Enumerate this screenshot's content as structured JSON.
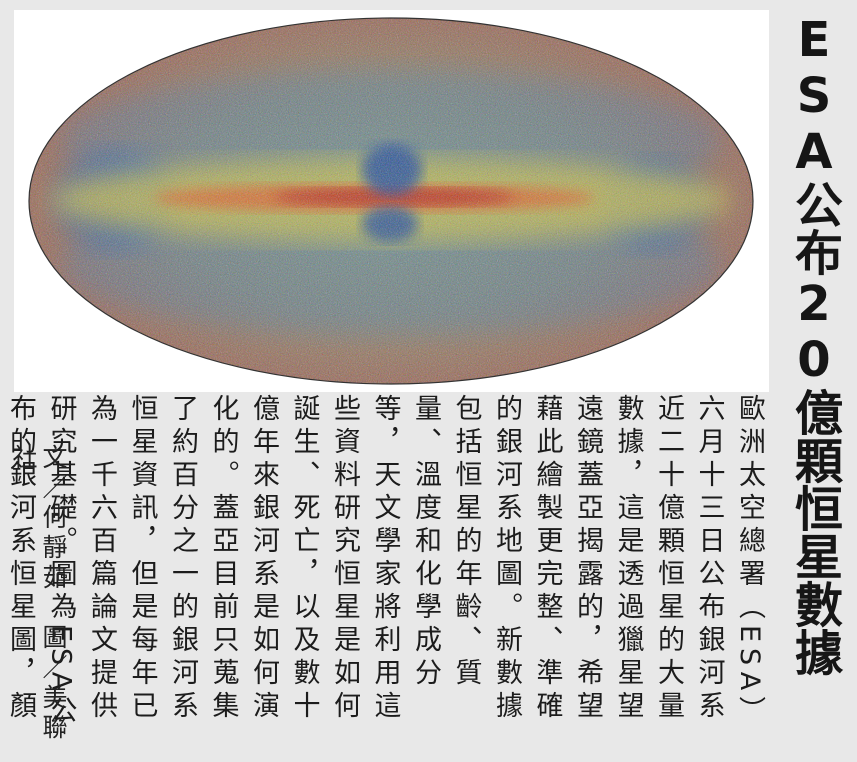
{
  "headline": "ESA公布20億顆恒星數據",
  "body": "歐洲太空總署（ESA）六月十三日公布銀河系近二十億顆恒星的大量數據，這是透過獵星望遠鏡蓋亞揭露的，希望藉此繪製更完整、準確的銀河系地圖。新數據包括恒星的年齡、質量、溫度和化學成分等，天文學家將利用這些資料研究恒星是如何誕生、死亡，以及數十億年來銀河系是如何演化的。蓋亞目前只蒐集了約百分之一的銀河系恒星資訊，但是每年已為一千六百篇論文提供研究基礎。圖為ESA公布的銀河系恒星圖，顏色越紅，表示恒星的金屬含量越多。",
  "credit": "文／何靜茹　圖／美聯社",
  "colors": {
    "background": "#e8e8e8",
    "sky_blue": "#2f6db0",
    "sky_red": "#c0462a",
    "sky_yellow": "#e7c23a"
  }
}
